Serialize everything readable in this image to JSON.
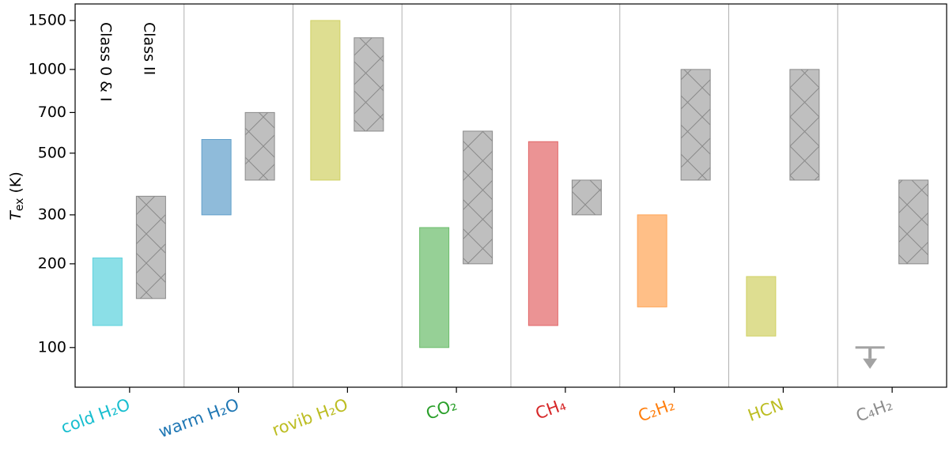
{
  "chart_data": {
    "type": "range_bar",
    "ylabel": {
      "symbol": "T",
      "subscript": "ex",
      "unit": "(K)"
    },
    "categories": [
      "cold H₂O",
      "warm H₂O",
      "rovib H₂O",
      "CO₂",
      "CH₄",
      "C₂H₂",
      "HCN",
      "C₄H₂"
    ],
    "category_colors": [
      "#17becf",
      "#1f77b4",
      "#bcbd22",
      "#2ca02c",
      "#d62728",
      "#ff7f0e",
      "#bcbd22",
      "#8c8c8c"
    ],
    "series": [
      {
        "name": "Class 0 & I",
        "low": [
          120,
          300,
          400,
          100,
          120,
          140,
          110,
          null
        ],
        "high": [
          210,
          560,
          1500,
          270,
          550,
          300,
          180,
          100
        ]
      },
      {
        "name": "Class II",
        "color": "#bfbfbf",
        "hatch": true,
        "low": [
          150,
          400,
          600,
          200,
          300,
          400,
          400,
          200
        ],
        "high": [
          350,
          700,
          1300,
          600,
          400,
          1000,
          1000,
          400
        ]
      }
    ],
    "log_y": true,
    "ylim": [
      72,
      1720
    ],
    "yticks": [
      100,
      200,
      300,
      500,
      700,
      1000,
      1500
    ]
  }
}
